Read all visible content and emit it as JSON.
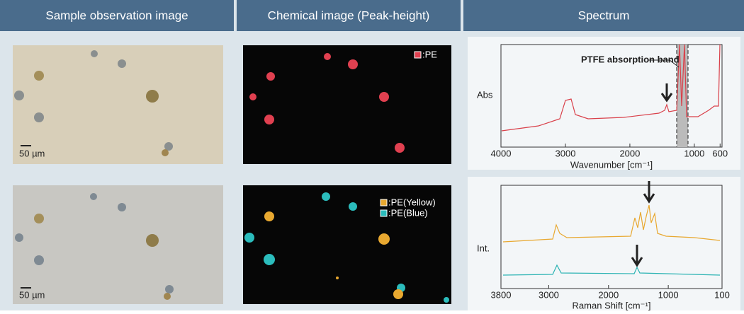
{
  "headers": [
    "Sample observation image",
    "Chemical image (Peak-height)",
    "Spectrum"
  ],
  "rows": [
    {
      "scale_bar": "50 µm",
      "legend": [
        ":PE"
      ],
      "spectrum": {
        "y_label": "Abs",
        "x_label": "Wavenumber [cm⁻¹]",
        "xlim": [
          4000,
          570
        ],
        "xticks": [
          4000,
          3000,
          2000,
          1000,
          600
        ],
        "annotation": "PTFE absorption band"
      }
    },
    {
      "scale_bar": "50 µm",
      "legend": [
        ":PE(Yellow)",
        ":PE(Blue)"
      ],
      "spectrum": {
        "y_label": "Int.",
        "x_label": "Raman Shift [cm⁻¹]",
        "xlim": [
          3800,
          100
        ],
        "xticks": [
          3800,
          3000,
          2000,
          1000,
          100
        ]
      }
    }
  ]
}
